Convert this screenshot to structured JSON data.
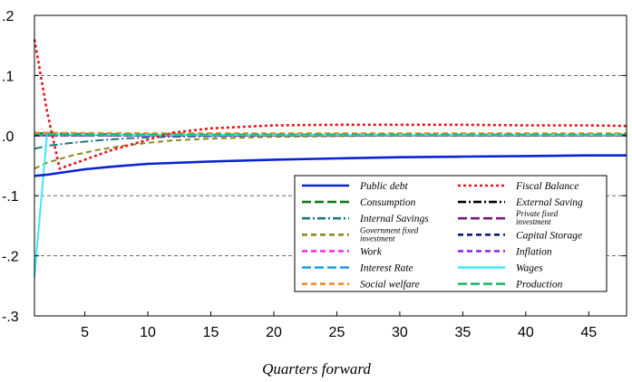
{
  "chart_data": {
    "type": "line",
    "title": "",
    "xlabel": "Quarters forward",
    "ylabel": "",
    "xlim": [
      1,
      48
    ],
    "ylim": [
      -0.3,
      0.2
    ],
    "x_ticks": [
      5,
      10,
      15,
      20,
      25,
      30,
      35,
      40,
      45
    ],
    "x_tick_labels": [
      "5",
      "10",
      "15",
      "20",
      "25",
      "30",
      "35",
      "40",
      "45"
    ],
    "y_ticks": [
      -0.3,
      -0.2,
      -0.1,
      0.0,
      0.1,
      0.2
    ],
    "y_tick_labels": [
      "-.3",
      "-.2",
      "-.1",
      ".0",
      ".1",
      ".2"
    ],
    "grid": "horizontal dashed",
    "legend_position": "bottom-right",
    "legend_columns": 2,
    "series": [
      {
        "name": "Public debt",
        "color": "#0a22d6",
        "dash": "solid",
        "x": [
          1,
          2,
          3,
          5,
          7,
          10,
          15,
          20,
          25,
          30,
          35,
          40,
          45,
          48
        ],
        "values": [
          -0.067,
          -0.065,
          -0.062,
          -0.056,
          -0.052,
          -0.047,
          -0.043,
          -0.04,
          -0.038,
          -0.036,
          -0.035,
          -0.034,
          -0.033,
          -0.033
        ]
      },
      {
        "name": "Fiscal Balance",
        "color": "#e8141e",
        "dash": "dot",
        "x": [
          1,
          2,
          3,
          5,
          7,
          10,
          12,
          15,
          20,
          25,
          30,
          35,
          40,
          45,
          48
        ],
        "values": [
          0.16,
          0.04,
          -0.055,
          -0.04,
          -0.025,
          -0.007,
          0.005,
          0.012,
          0.017,
          0.018,
          0.018,
          0.018,
          0.017,
          0.017,
          0.016
        ]
      },
      {
        "name": "Consumption",
        "color": "#0e7a1a",
        "dash": "longdash",
        "x": [
          1,
          2,
          5,
          10,
          20,
          30,
          40,
          48
        ],
        "values": [
          0.004,
          0.004,
          0.003,
          0.002,
          0.001,
          0.001,
          0.001,
          0.001
        ]
      },
      {
        "name": "External Saving",
        "color": "#000000",
        "dash": "dashdot",
        "x": [
          1,
          2,
          5,
          10,
          20,
          30,
          40,
          48
        ],
        "values": [
          0.002,
          0.002,
          0.001,
          0.001,
          0.001,
          0.0,
          0.0,
          0.0
        ]
      },
      {
        "name": "Internal Savings",
        "color": "#1a7a80",
        "dash": "dashdot",
        "x": [
          1,
          2,
          4,
          6,
          8,
          10,
          12,
          15,
          20,
          30,
          48
        ],
        "values": [
          -0.022,
          -0.017,
          -0.012,
          -0.008,
          -0.005,
          -0.003,
          -0.002,
          -0.001,
          0.0,
          0.0,
          0.0
        ]
      },
      {
        "name": "Private fixed investment",
        "color": "#7a1a7a",
        "dash": "longdash",
        "x": [
          1,
          2,
          10,
          48
        ],
        "values": [
          0.0,
          0.0,
          0.0,
          0.0
        ]
      },
      {
        "name": "Government fixed investment",
        "color": "#8a8a1e",
        "dash": "dash",
        "x": [
          1,
          2,
          4,
          6,
          8,
          10,
          12,
          15,
          20,
          25,
          30,
          48
        ],
        "values": [
          -0.055,
          -0.045,
          -0.033,
          -0.024,
          -0.017,
          -0.012,
          -0.008,
          -0.005,
          -0.002,
          -0.001,
          0.0,
          0.0
        ]
      },
      {
        "name": "Capital Storage",
        "color": "#0a1a6e",
        "dash": "dash",
        "x": [
          1,
          2,
          10,
          48
        ],
        "values": [
          0.0,
          0.0,
          0.0,
          0.0
        ]
      },
      {
        "name": "Work",
        "color": "#ff2ee8",
        "dash": "dash",
        "x": [
          1,
          2,
          10,
          48
        ],
        "values": [
          0.001,
          0.001,
          0.001,
          0.001
        ]
      },
      {
        "name": "Inflation",
        "color": "#8a2ee8",
        "dash": "dash",
        "x": [
          1,
          2,
          10,
          48
        ],
        "values": [
          0.0,
          0.0,
          0.0,
          0.0
        ]
      },
      {
        "name": "Interest Rate",
        "color": "#1a9ae8",
        "dash": "longdash",
        "x": [
          1,
          2,
          10,
          48
        ],
        "values": [
          0.001,
          0.001,
          0.001,
          0.001
        ]
      },
      {
        "name": "Wages",
        "color": "#3ae8f8",
        "dash": "solid",
        "x": [
          1,
          2,
          3,
          10,
          48
        ],
        "values": [
          -0.235,
          0.003,
          0.002,
          0.001,
          0.001
        ]
      },
      {
        "name": "Social welfare",
        "color": "#f08a1e",
        "dash": "dash",
        "x": [
          1,
          2,
          10,
          48
        ],
        "values": [
          0.005,
          0.005,
          0.004,
          0.004
        ]
      },
      {
        "name": "Production",
        "color": "#1ab86a",
        "dash": "longdash",
        "x": [
          1,
          2,
          10,
          48
        ],
        "values": [
          0.002,
          0.002,
          0.002,
          0.002
        ]
      }
    ]
  }
}
